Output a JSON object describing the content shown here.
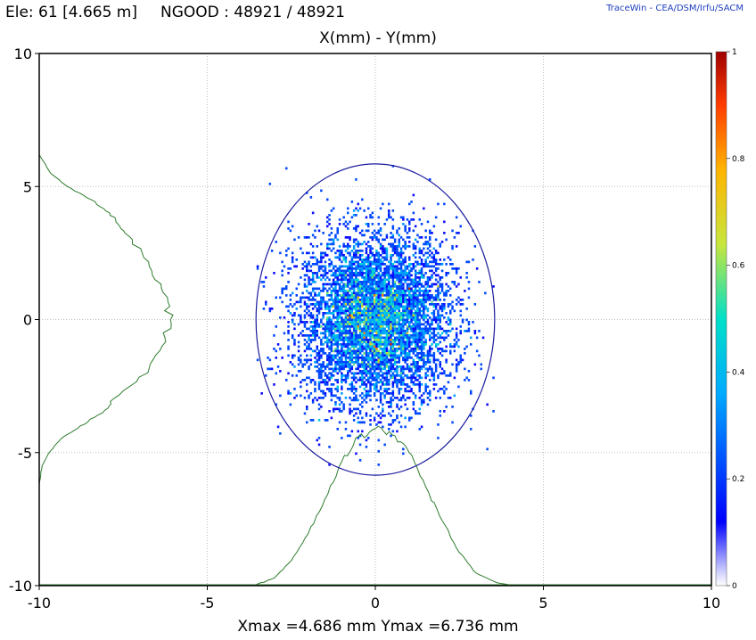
{
  "header": {
    "element_info": "Ele: 61 [4.665 m]",
    "ngood": "NGOOD : 48921 / 48921",
    "credit": "TraceWin - CEA/DSM/Irfu/SACM"
  },
  "footer": {
    "extent": "Xmax =4.686 mm  Ymax =6.736 mm"
  },
  "colors": {
    "ellipse": "#1a1a9e",
    "profile": "#2e7d2e",
    "grid": "#bdbdbd",
    "axis": "#000000"
  },
  "chart_data": {
    "type": "heatmap",
    "title": "X(mm) - Y(mm)",
    "xlabel": "",
    "ylabel": "",
    "xlim": [
      -10,
      10
    ],
    "ylim": [
      -10,
      10
    ],
    "xticks": [
      -10,
      -5,
      0,
      5,
      10
    ],
    "yticks": [
      -10,
      -5,
      0,
      5,
      10
    ],
    "grid": true,
    "colorscale": {
      "name": "jet",
      "range": [
        0,
        1
      ],
      "ticks": [
        0,
        0.2,
        0.4,
        0.6,
        0.8,
        1
      ]
    },
    "beam_distribution": {
      "center": [
        0,
        0
      ],
      "sigma_x": 1.05,
      "sigma_y": 1.6,
      "x_extent": [
        -3.6,
        3.6
      ],
      "y_extent": [
        -5.9,
        6.6
      ]
    },
    "ellipse": {
      "center": [
        0,
        0
      ],
      "semi_x": 3.55,
      "semi_y": 5.85
    },
    "x_profile": {
      "x": [
        -3.6,
        -3.0,
        -2.5,
        -2.0,
        -1.5,
        -1.0,
        -0.5,
        0.0,
        0.5,
        1.0,
        1.5,
        2.0,
        2.5,
        3.0,
        3.6,
        4.2
      ],
      "rel": [
        0.0,
        0.05,
        0.16,
        0.33,
        0.55,
        0.79,
        0.95,
        1.0,
        0.96,
        0.85,
        0.63,
        0.41,
        0.21,
        0.08,
        0.02,
        0.0
      ]
    },
    "y_profile": {
      "y": [
        6.2,
        5.5,
        5.0,
        4.5,
        4.0,
        3.5,
        3.0,
        2.0,
        1.0,
        0.0,
        -1.0,
        -2.0,
        -3.0,
        -3.5,
        -4.0,
        -4.5,
        -5.0,
        -5.5,
        -6.2
      ],
      "rel": [
        0.0,
        0.08,
        0.2,
        0.37,
        0.5,
        0.57,
        0.66,
        0.78,
        0.88,
        0.93,
        0.87,
        0.77,
        0.52,
        0.45,
        0.29,
        0.15,
        0.07,
        0.02,
        0.0
      ]
    }
  }
}
